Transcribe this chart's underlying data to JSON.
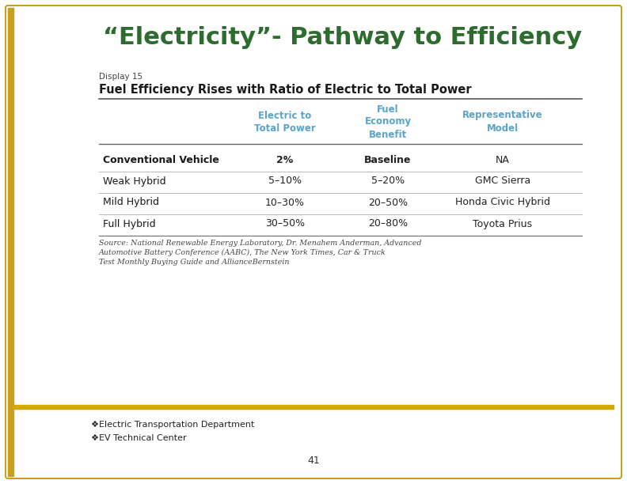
{
  "title": "“Electricity”- Pathway to Efficiency",
  "title_color": "#2E6B2E",
  "display_label": "Display 15",
  "subtitle": "Fuel Efficiency Rises with Ratio of Electric to Total Power",
  "header_color": "#5BA3C9",
  "col_headers": [
    "Electric to\nTotal Power",
    "Fuel\nEconomy\nBenefit",
    "Representative\nModel"
  ],
  "row_labels": [
    "Conventional Vehicle",
    "Weak Hybrid",
    "Mild Hybrid",
    "Full Hybrid"
  ],
  "col1": [
    "2%",
    "5–10%",
    "10–30%",
    "30–50%"
  ],
  "col2": [
    "Baseline",
    "5–20%",
    "20–50%",
    "20–80%"
  ],
  "col3": [
    "NA",
    "GMC Sierra",
    "Honda Civic Hybrid",
    "Toyota Prius"
  ],
  "source_text": "Source: National Renewable Energy Laboratory, Dr. Menahem Anderman, Advanced\nAutomotive Battery Conference (AABC), The New York Times, Car & Truck\nTest Monthly Buying Guide and AllianceBernstein",
  "footer_line1": "❖Electric Transportation Department",
  "footer_line2": "❖EV Technical Center",
  "page_num": "41",
  "bg_color": "#FFFFFF",
  "border_color": "#C8A020",
  "left_bar_color": "#C8A020",
  "footer_bar_color": "#D4AA00",
  "body_text_color": "#333333",
  "fig_width": 7.92,
  "fig_height": 6.12,
  "dpi": 100
}
